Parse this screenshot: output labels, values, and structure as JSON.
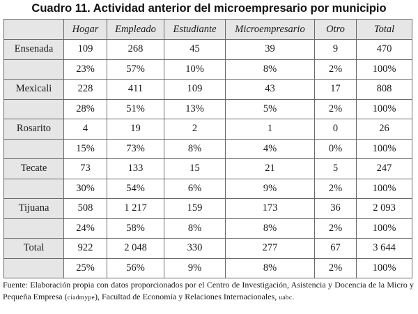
{
  "title": "Cuadro 11. Actividad anterior del microempresario por municipio",
  "table": {
    "headers": [
      "Hogar",
      "Empleado",
      "Estudiante",
      "Microempresario",
      "Otro",
      "Total"
    ],
    "rows": [
      {
        "municipio": "Ensenada",
        "counts": [
          "109",
          "268",
          "45",
          "39",
          "9",
          "470"
        ],
        "percents": [
          "23%",
          "57%",
          "10%",
          "8%",
          "2%",
          "100%"
        ]
      },
      {
        "municipio": "Mexicali",
        "counts": [
          "228",
          "411",
          "109",
          "43",
          "17",
          "808"
        ],
        "percents": [
          "28%",
          "51%",
          "13%",
          "5%",
          "2%",
          "100%"
        ]
      },
      {
        "municipio": "Rosarito",
        "counts": [
          "4",
          "19",
          "2",
          "1",
          "0",
          "26"
        ],
        "percents": [
          "15%",
          "73%",
          "8%",
          "4%",
          "0%",
          "100%"
        ]
      },
      {
        "municipio": "Tecate",
        "counts": [
          "73",
          "133",
          "15",
          "21",
          "5",
          "247"
        ],
        "percents": [
          "30%",
          "54%",
          "6%",
          "9%",
          "2%",
          "100%"
        ]
      },
      {
        "municipio": "Tijuana",
        "counts": [
          "508",
          "1 217",
          "159",
          "173",
          "36",
          "2 093"
        ],
        "percents": [
          "24%",
          "58%",
          "8%",
          "8%",
          "2%",
          "100%"
        ]
      },
      {
        "municipio": "Total",
        "counts": [
          "922",
          "2 048",
          "330",
          "277",
          "67",
          "3 644"
        ],
        "percents": [
          "25%",
          "56%",
          "9%",
          "8%",
          "2%",
          "100%"
        ]
      }
    ]
  },
  "source": {
    "part1": "Fuente: Elaboración propia con datos proporcionados por el Centro de Investigación, Asistencia y Docencia de la Micro y Pequeña Empresa (",
    "acronym1": "ciadmype",
    "part2": "), Facultad de Economía y Relaciones Internacionales, ",
    "acronym2": "uabc",
    "part3": "."
  }
}
